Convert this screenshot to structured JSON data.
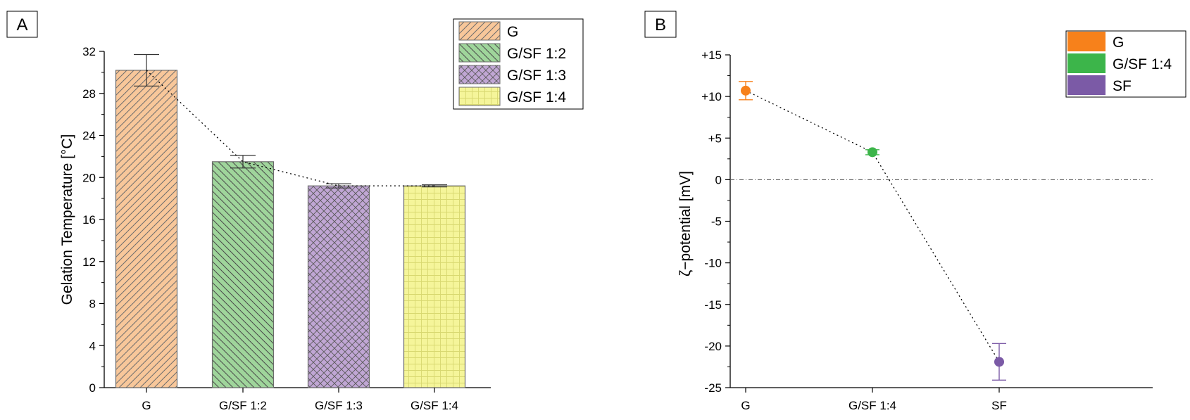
{
  "chart_data": [
    {
      "panel_label": "A",
      "type": "bar",
      "categories": [
        "G",
        "G/SF 1:2",
        "G/SF 1:3",
        "G/SF 1:4"
      ],
      "values": [
        30.2,
        21.5,
        19.2,
        19.2
      ],
      "errors": [
        1.5,
        0.6,
        0.2,
        0.1
      ],
      "colors": [
        "#f8c79a",
        "#9fd59b",
        "#c0a6d4",
        "#f5f59a"
      ],
      "hatch": [
        "diagonal-up",
        "diagonal-down",
        "crosshatch",
        "grid"
      ],
      "trend_line": "dotted",
      "xlabel": "",
      "ylabel": "Gelation Temperature [°C]",
      "ylim": [
        0,
        32
      ],
      "yticks": [
        0,
        4,
        8,
        12,
        16,
        20,
        24,
        28,
        32
      ],
      "ytick_labels": [
        "0",
        "4",
        "8",
        "12",
        "16",
        "20",
        "24",
        "28",
        "32"
      ],
      "legend": [
        "G",
        "G/SF 1:2",
        "G/SF 1:3",
        "G/SF 1:4"
      ],
      "legend_position": "top-right",
      "grid": false
    },
    {
      "panel_label": "B",
      "type": "scatter",
      "categories": [
        "G",
        "G/SF 1:4",
        "SF"
      ],
      "values": [
        10.7,
        3.3,
        -21.9
      ],
      "errors": [
        1.1,
        0.3,
        2.2
      ],
      "colors": [
        "#f7811b",
        "#3cb54a",
        "#7b5aa6"
      ],
      "trend_line": "dotted",
      "zero_line": "dash-dot",
      "xlabel": "",
      "ylabel": "ζ−potential [mV]",
      "ylim": [
        -25,
        15
      ],
      "yticks": [
        -25,
        -20,
        -15,
        -10,
        -5,
        0,
        5,
        10,
        15
      ],
      "ytick_labels": [
        "-25",
        "-20",
        "-15",
        "-10",
        "-5",
        "0",
        "+5",
        "+10",
        "+15"
      ],
      "legend": [
        "G",
        "G/SF 1:4",
        "SF"
      ],
      "legend_position": "top-right",
      "grid": false
    }
  ]
}
